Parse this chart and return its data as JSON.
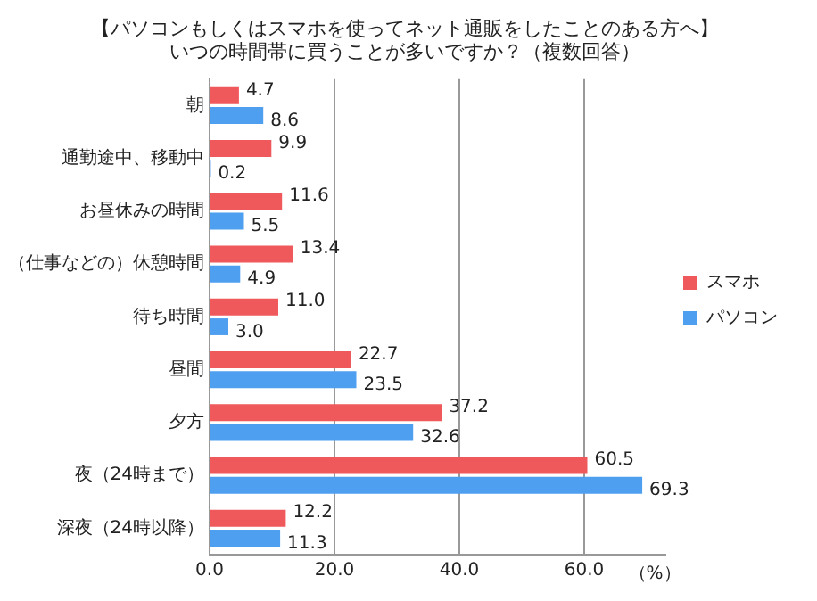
{
  "chart_data": {
    "type": "bar",
    "orientation": "horizontal",
    "title": "【パソコンもしくはスマホを使ってネット通販をしたことのある方へ】",
    "subtitle": "いつの時間帯に買うことが多いですか？（複数回答）",
    "categories": [
      "朝",
      "通勤途中、移動中",
      "お昼休みの時間",
      "（仕事などの）休憩時間",
      "待ち時間",
      "昼間",
      "夕方",
      "夜（24時まで）",
      "深夜（24時以降）"
    ],
    "series": [
      {
        "name": "スマホ",
        "color": "#f0595b",
        "values": [
          4.7,
          9.9,
          11.6,
          13.4,
          11.0,
          22.7,
          37.2,
          60.5,
          12.2
        ],
        "value_labels": [
          "4.7",
          "9.9",
          "11.6",
          "13.4",
          "11.0",
          "22.7",
          "37.2",
          "60.5",
          "12.2"
        ]
      },
      {
        "name": "パソコン",
        "color": "#4f9ff0",
        "values": [
          8.6,
          0.2,
          5.5,
          4.9,
          3.0,
          23.5,
          32.6,
          69.3,
          11.3
        ],
        "value_labels": [
          "8.6",
          "0.2",
          "5.5",
          "4.9",
          "3.0",
          "23.5",
          "32.6",
          "69.3",
          "11.3"
        ]
      }
    ],
    "xlim": [
      0,
      73
    ],
    "xticks": [
      {
        "value": 0,
        "label": "0.0"
      },
      {
        "value": 20,
        "label": "20.0"
      },
      {
        "value": 40,
        "label": "40.0"
      },
      {
        "value": 60,
        "label": "60.0"
      }
    ],
    "xlabel": "（%）",
    "grid": "x",
    "legend": "right"
  }
}
